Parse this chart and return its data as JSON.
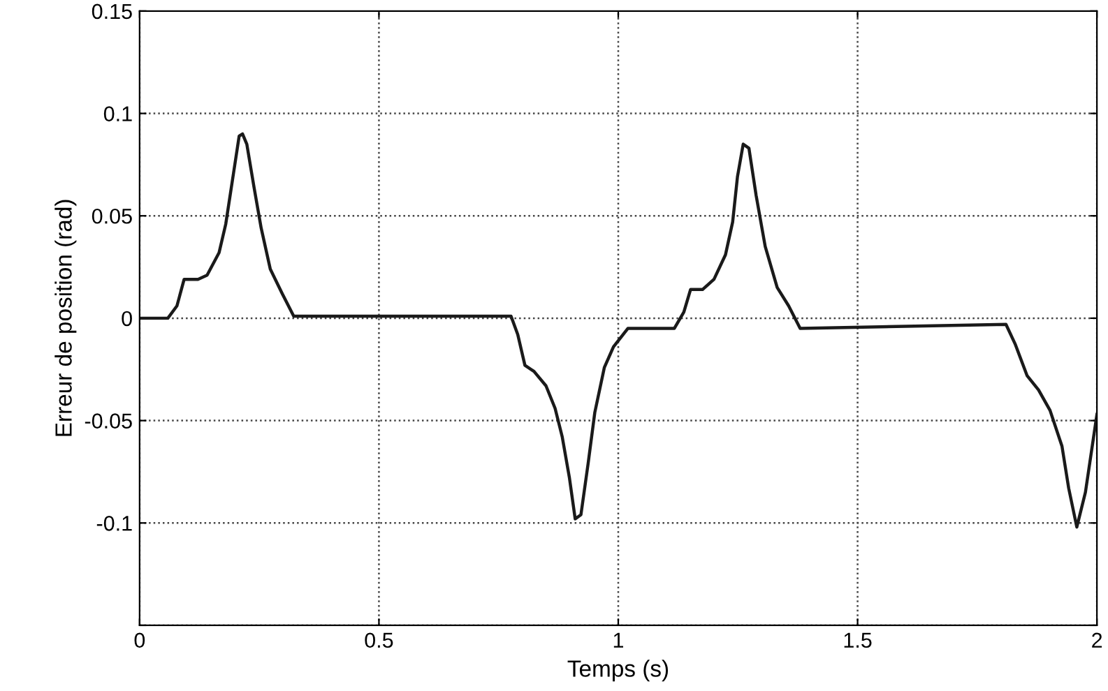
{
  "chart_data": {
    "type": "line",
    "xlabel": "Temps (s)",
    "ylabel": "Erreur de position (rad)",
    "xlim": [
      0,
      2
    ],
    "ylim": [
      -0.15,
      0.15
    ],
    "xticks": [
      0,
      0.5,
      1,
      1.5,
      2
    ],
    "yticks": [
      {
        "value": -0.15,
        "label": null
      },
      -0.1,
      -0.05,
      0,
      0.05,
      0.1,
      0.15
    ],
    "grid": true,
    "line_style": "solid",
    "marker": "none",
    "series": [
      {
        "color": "#1a1a1a",
        "x": [
          0,
          0.059,
          0.078,
          0.093,
          0.122,
          0.141,
          0.166,
          0.18,
          0.195,
          0.208,
          0.215,
          0.224,
          0.239,
          0.254,
          0.273,
          0.298,
          0.322,
          0.776,
          0.79,
          0.805,
          0.824,
          0.849,
          0.868,
          0.883,
          0.898,
          0.91,
          0.922,
          0.937,
          0.951,
          0.971,
          0.99,
          1.02,
          1.117,
          1.137,
          1.151,
          1.176,
          1.2,
          1.224,
          1.239,
          1.249,
          1.261,
          1.273,
          1.288,
          1.307,
          1.332,
          1.356,
          1.38,
          1.81,
          1.829,
          1.854,
          1.878,
          1.902,
          1.927,
          1.941,
          1.958,
          1.976,
          2.0
        ],
        "values": [
          0,
          0,
          0.006,
          0.019,
          0.019,
          0.021,
          0.032,
          0.046,
          0.069,
          0.089,
          0.09,
          0.085,
          0.064,
          0.044,
          0.024,
          0.012,
          0.001,
          0.001,
          -0.008,
          -0.023,
          -0.026,
          -0.033,
          -0.044,
          -0.058,
          -0.078,
          -0.098,
          -0.096,
          -0.071,
          -0.046,
          -0.024,
          -0.014,
          -0.005,
          -0.005,
          0.003,
          0.014,
          0.014,
          0.019,
          0.031,
          0.047,
          0.069,
          0.085,
          0.083,
          0.06,
          0.035,
          0.015,
          0.006,
          -0.005,
          -0.003,
          -0.0125,
          -0.028,
          -0.035,
          -0.045,
          -0.0625,
          -0.083,
          -0.102,
          -0.085,
          -0.047
        ]
      }
    ]
  }
}
